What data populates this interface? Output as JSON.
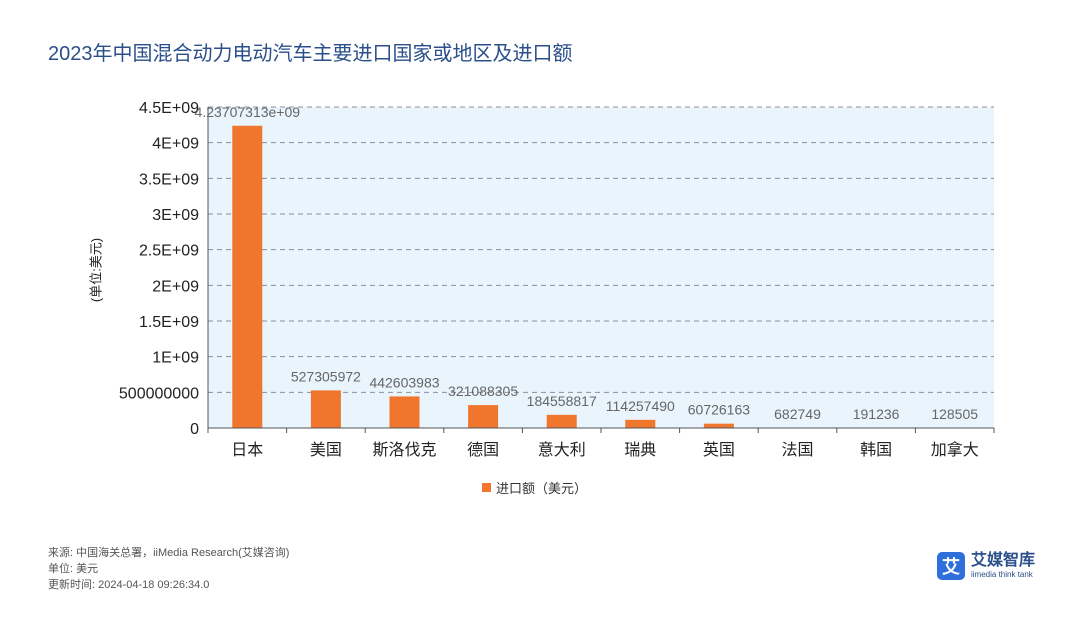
{
  "colors": {
    "title": "#2b4f8a",
    "bar": "#f0752d",
    "plot_bg": "#e9f4fd",
    "grid": "#8a8f99",
    "logo": "#2f6fdc"
  },
  "chart_data": {
    "type": "bar",
    "title": "2023年中国混合动力电动汽车主要进口国家或地区及进口额",
    "xlabel": "",
    "ylabel": "(单位:美元)",
    "ylim": [
      0,
      4500000000
    ],
    "yticks": [
      0,
      500000000,
      1000000000,
      1500000000,
      2000000000,
      2500000000,
      3000000000,
      3500000000,
      4000000000,
      4500000000
    ],
    "ytick_labels": [
      "0",
      "500000000",
      "1E+09",
      "1.5E+09",
      "2E+09",
      "2.5E+09",
      "3E+09",
      "3.5E+09",
      "4E+09",
      "4.5E+09"
    ],
    "grid": true,
    "legend_position": "bottom",
    "categories": [
      "日本",
      "美国",
      "斯洛伐克",
      "德国",
      "意大利",
      "瑞典",
      "英国",
      "法国",
      "韩国",
      "加拿大"
    ],
    "series": [
      {
        "name": "进口额（美元）",
        "values": [
          4237073130,
          527305972,
          442603983,
          321088305,
          184558817,
          114257490,
          60726163,
          682749,
          191236,
          128505
        ],
        "data_labels": [
          "4.23707313e+09",
          "527305972",
          "442603983",
          "321088305",
          "184558817",
          "114257490",
          "60726163",
          "682749",
          "191236",
          "128505"
        ]
      }
    ]
  },
  "footer": {
    "source": "来源: 中国海关总署，iiMedia Research(艾媒咨询)",
    "unit": "单位: 美元",
    "updated": "更新时间: 2024-04-18 09:26:34.0"
  },
  "logo": {
    "mark": "艾",
    "name": "艾媒智库",
    "sub": "iimedia think tank"
  }
}
